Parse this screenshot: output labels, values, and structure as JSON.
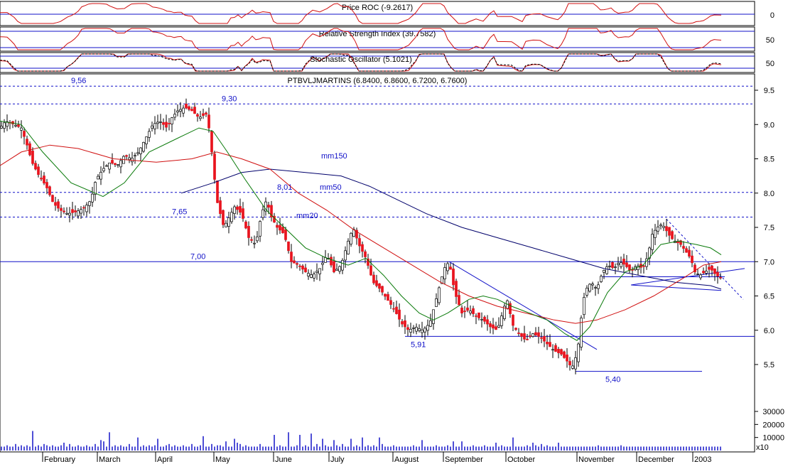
{
  "chart_data": {
    "type": "candlestick",
    "title": "PTBVLJMARTINS (6.8400, 6.8600, 6.7200, 6.7600)",
    "symbol": "PTBVLJMARTINS",
    "last_ohlc": {
      "open": 6.84,
      "high": 6.86,
      "low": 6.72,
      "close": 6.76
    },
    "price_axis": {
      "ylim": [
        5.3,
        9.6
      ],
      "ticks": [
        "9.5",
        "9.0",
        "8.5",
        "8.0",
        "7.5",
        "7.0",
        "6.5",
        "6.0",
        "5.5"
      ]
    },
    "time_axis": {
      "months": [
        "February",
        "March",
        "April",
        "May",
        "June",
        "July",
        "August",
        "September",
        "October",
        "November",
        "December",
        "2003"
      ]
    },
    "moving_averages": [
      {
        "name": "mm150",
        "color": "#00006b"
      },
      {
        "name": "mm50",
        "color": "#d01010"
      },
      {
        "name": "mm20",
        "color": "#0a7a0a"
      }
    ],
    "price_path": [
      [
        0,
        8.95
      ],
      [
        8,
        9.05
      ],
      [
        20,
        9.0
      ],
      [
        30,
        8.95
      ],
      [
        38,
        8.7
      ],
      [
        45,
        8.45
      ],
      [
        55,
        8.25
      ],
      [
        65,
        8.1
      ],
      [
        75,
        7.85
      ],
      [
        85,
        7.75
      ],
      [
        95,
        7.7
      ],
      [
        105,
        7.72
      ],
      [
        112,
        7.75
      ],
      [
        120,
        7.8
      ],
      [
        128,
        7.9
      ],
      [
        135,
        8.2
      ],
      [
        145,
        8.35
      ],
      [
        155,
        8.45
      ],
      [
        165,
        8.4
      ],
      [
        175,
        8.55
      ],
      [
        185,
        8.5
      ],
      [
        195,
        8.6
      ],
      [
        205,
        8.8
      ],
      [
        215,
        9.0
      ],
      [
        225,
        9.05
      ],
      [
        235,
        8.95
      ],
      [
        242,
        9.1
      ],
      [
        250,
        9.2
      ],
      [
        260,
        9.25
      ],
      [
        270,
        9.2
      ],
      [
        280,
        9.1
      ],
      [
        290,
        9.15
      ],
      [
        295,
        8.9
      ],
      [
        300,
        8.4
      ],
      [
        305,
        7.9
      ],
      [
        310,
        7.7
      ],
      [
        315,
        7.5
      ],
      [
        320,
        7.6
      ],
      [
        330,
        7.8
      ],
      [
        340,
        7.7
      ],
      [
        350,
        7.35
      ],
      [
        360,
        7.25
      ],
      [
        368,
        7.7
      ],
      [
        375,
        7.9
      ],
      [
        382,
        7.65
      ],
      [
        390,
        7.5
      ],
      [
        400,
        7.4
      ],
      [
        410,
        7.0
      ],
      [
        420,
        6.95
      ],
      [
        430,
        6.85
      ],
      [
        440,
        6.8
      ],
      [
        450,
        6.9
      ],
      [
        460,
        7.1
      ],
      [
        470,
        6.85
      ],
      [
        480,
        6.95
      ],
      [
        490,
        7.3
      ],
      [
        497,
        7.5
      ],
      [
        505,
        7.25
      ],
      [
        515,
        7.05
      ],
      [
        525,
        6.7
      ],
      [
        535,
        6.6
      ],
      [
        545,
        6.45
      ],
      [
        555,
        6.3
      ],
      [
        565,
        6.1
      ],
      [
        575,
        6.0
      ],
      [
        585,
        6.05
      ],
      [
        595,
        6.0
      ],
      [
        605,
        6.1
      ],
      [
        615,
        6.5
      ],
      [
        625,
        6.9
      ],
      [
        632,
        7.0
      ],
      [
        640,
        6.55
      ],
      [
        650,
        6.25
      ],
      [
        660,
        6.3
      ],
      [
        670,
        6.2
      ],
      [
        680,
        6.15
      ],
      [
        690,
        6.05
      ],
      [
        700,
        6.0
      ],
      [
        710,
        6.35
      ],
      [
        715,
        6.45
      ],
      [
        720,
        6.1
      ],
      [
        730,
        5.95
      ],
      [
        740,
        5.85
      ],
      [
        750,
        5.95
      ],
      [
        760,
        5.9
      ],
      [
        770,
        5.8
      ],
      [
        780,
        5.7
      ],
      [
        790,
        5.65
      ],
      [
        798,
        5.55
      ],
      [
        805,
        5.45
      ],
      [
        810,
        5.6
      ],
      [
        815,
        5.85
      ],
      [
        820,
        6.4
      ],
      [
        825,
        6.6
      ],
      [
        832,
        6.7
      ],
      [
        840,
        6.6
      ],
      [
        848,
        6.85
      ],
      [
        856,
        6.95
      ],
      [
        864,
        6.9
      ],
      [
        872,
        7.0
      ],
      [
        880,
        6.95
      ],
      [
        888,
        6.85
      ],
      [
        896,
        6.95
      ],
      [
        905,
        6.9
      ],
      [
        912,
        7.1
      ],
      [
        918,
        7.4
      ],
      [
        925,
        7.5
      ],
      [
        932,
        7.55
      ],
      [
        938,
        7.45
      ],
      [
        944,
        7.35
      ],
      [
        950,
        7.3
      ],
      [
        958,
        7.25
      ],
      [
        965,
        7.15
      ],
      [
        972,
        7.05
      ],
      [
        978,
        6.85
      ],
      [
        985,
        6.8
      ],
      [
        992,
        6.85
      ],
      [
        1000,
        6.9
      ],
      [
        1008,
        6.8
      ],
      [
        1015,
        6.76
      ]
    ],
    "ma_paths": {
      "mm20": [
        [
          0,
          9.05
        ],
        [
          30,
          9.0
        ],
        [
          60,
          8.6
        ],
        [
          100,
          8.15
        ],
        [
          145,
          7.95
        ],
        [
          175,
          8.15
        ],
        [
          210,
          8.6
        ],
        [
          250,
          8.8
        ],
        [
          280,
          8.95
        ],
        [
          300,
          8.9
        ],
        [
          320,
          8.6
        ],
        [
          345,
          8.2
        ],
        [
          375,
          7.75
        ],
        [
          400,
          7.5
        ],
        [
          430,
          7.2
        ],
        [
          460,
          7.05
        ],
        [
          490,
          6.95
        ],
        [
          515,
          7.05
        ],
        [
          540,
          6.8
        ],
        [
          565,
          6.5
        ],
        [
          590,
          6.25
        ],
        [
          610,
          6.15
        ],
        [
          630,
          6.25
        ],
        [
          660,
          6.45
        ],
        [
          680,
          6.5
        ],
        [
          700,
          6.45
        ],
        [
          720,
          6.35
        ],
        [
          745,
          6.25
        ],
        [
          770,
          6.15
        ],
        [
          795,
          5.95
        ],
        [
          812,
          5.85
        ],
        [
          830,
          6.05
        ],
        [
          855,
          6.55
        ],
        [
          880,
          6.85
        ],
        [
          905,
          6.95
        ],
        [
          930,
          7.25
        ],
        [
          955,
          7.3
        ],
        [
          980,
          7.25
        ],
        [
          1000,
          7.2
        ],
        [
          1015,
          7.1
        ]
      ],
      "mm50": [
        [
          0,
          8.4
        ],
        [
          30,
          8.6
        ],
        [
          70,
          8.7
        ],
        [
          110,
          8.65
        ],
        [
          160,
          8.5
        ],
        [
          220,
          8.45
        ],
        [
          270,
          8.5
        ],
        [
          305,
          8.6
        ],
        [
          340,
          8.5
        ],
        [
          380,
          8.35
        ],
        [
          420,
          8.0
        ],
        [
          460,
          7.75
        ],
        [
          500,
          7.45
        ],
        [
          540,
          7.2
        ],
        [
          580,
          6.95
        ],
        [
          620,
          6.7
        ],
        [
          660,
          6.5
        ],
        [
          700,
          6.35
        ],
        [
          740,
          6.25
        ],
        [
          780,
          6.15
        ],
        [
          810,
          6.1
        ],
        [
          840,
          6.15
        ],
        [
          880,
          6.3
        ],
        [
          920,
          6.5
        ],
        [
          960,
          6.75
        ],
        [
          990,
          6.95
        ],
        [
          1015,
          7.0
        ]
      ],
      "mm150": [
        [
          255,
          8.0
        ],
        [
          300,
          8.15
        ],
        [
          340,
          8.3
        ],
        [
          380,
          8.35
        ],
        [
          430,
          8.3
        ],
        [
          480,
          8.25
        ],
        [
          520,
          8.1
        ],
        [
          560,
          7.9
        ],
        [
          600,
          7.7
        ],
        [
          650,
          7.5
        ],
        [
          700,
          7.35
        ],
        [
          750,
          7.2
        ],
        [
          800,
          7.05
        ],
        [
          850,
          6.9
        ],
        [
          900,
          6.8
        ],
        [
          950,
          6.7
        ],
        [
          1000,
          6.65
        ],
        [
          1015,
          6.6
        ]
      ]
    },
    "horizontal_levels": [
      {
        "value": 9.56,
        "label": "9,56",
        "style": "dashed"
      },
      {
        "value": 9.3,
        "label": "9,30",
        "style": "dashed"
      },
      {
        "value": 8.01,
        "label": "8,01",
        "style": "dashed"
      },
      {
        "value": 7.65,
        "label": "7,65",
        "style": "dashed"
      },
      {
        "value": 7.0,
        "label": "7,00",
        "style": "solid"
      },
      {
        "value": 5.91,
        "label": "5,91",
        "style": "solid"
      },
      {
        "value": 5.4,
        "label": "5,40",
        "style": "solid"
      }
    ],
    "trendlines": [
      {
        "from": [
          632,
          7.0
        ],
        "to": [
          840,
          5.72
        ]
      },
      {
        "from": [
          888,
          6.66
        ],
        "to": [
          1048,
          6.9
        ]
      },
      {
        "from": [
          888,
          6.66
        ],
        "to": [
          1015,
          6.58
        ]
      },
      {
        "from": [
          848,
          6.78
        ],
        "to": [
          1020,
          6.78
        ]
      }
    ],
    "volume_axis": {
      "ylim": [
        0,
        40000
      ],
      "ticks": [
        "30000",
        "20000",
        "10000"
      ],
      "multiplier_label": "x10"
    },
    "volume": [
      3,
      3,
      4,
      3,
      3,
      5,
      3,
      4,
      3,
      4,
      3,
      15,
      3,
      4,
      3,
      5,
      4,
      3,
      4,
      3,
      3,
      4,
      6,
      3,
      5,
      3,
      3,
      4,
      3,
      3,
      4,
      3,
      3,
      5,
      3,
      8,
      7,
      3,
      14,
      3,
      4,
      3,
      4,
      3,
      3,
      5,
      3,
      3,
      10,
      3,
      4,
      3,
      4,
      3,
      4,
      9,
      3,
      3,
      4,
      5,
      3,
      4,
      3,
      3,
      4,
      3,
      3,
      5,
      3,
      3,
      4,
      11,
      3,
      3,
      5,
      3,
      4,
      4,
      3,
      7,
      3,
      3,
      9,
      6,
      5,
      3,
      4,
      3,
      3,
      3,
      3,
      5,
      3,
      3,
      3,
      3,
      12,
      3,
      4,
      3,
      3,
      14,
      3,
      3,
      4,
      12,
      3,
      4,
      3,
      13,
      3,
      5,
      3,
      9,
      4,
      3,
      3,
      8,
      4,
      3,
      5,
      3,
      3,
      9,
      3,
      4,
      3,
      10,
      3,
      4,
      3,
      4,
      3,
      10,
      5,
      3,
      3,
      3,
      4,
      3,
      3,
      3,
      3,
      3,
      3,
      4,
      3,
      3,
      8,
      3,
      3,
      3,
      3,
      4,
      3,
      3,
      3,
      4,
      3,
      7,
      3,
      3,
      7,
      3,
      3,
      3,
      4,
      3,
      3,
      3,
      4,
      3,
      3,
      3,
      6,
      3,
      4,
      3,
      3,
      3,
      10,
      3,
      3,
      3,
      3,
      4,
      3,
      6,
      4,
      3,
      5,
      3,
      4,
      3,
      3,
      3,
      6,
      3,
      3,
      3,
      3,
      3,
      3,
      3,
      3,
      3,
      3,
      3,
      3,
      3,
      4,
      3,
      3,
      3,
      3,
      3,
      3,
      3,
      4,
      3,
      3,
      3,
      3,
      3,
      3,
      3,
      3,
      3,
      3,
      3,
      3,
      3,
      3,
      3,
      3,
      3,
      3,
      3,
      3,
      3,
      3,
      3,
      3,
      3,
      3,
      3,
      3,
      3,
      3,
      3,
      3,
      3,
      3,
      3,
      3,
      3,
      3,
      3
    ],
    "indicators": [
      {
        "name": "Price ROC",
        "title": "Price ROC (-9.2617)",
        "value": -9.2617,
        "ticks": [
          "0"
        ]
      },
      {
        "name": "Relative Strength Index",
        "title": "Relative Strength Index (39.7582)",
        "value": 39.7582,
        "ticks": [
          "50"
        ]
      },
      {
        "name": "Stochastic Oscillator",
        "title": "Stochastic Oscillator (5.1021)",
        "value": 5.1021,
        "ticks": [
          "50"
        ]
      }
    ],
    "colors": {
      "up_candle": "#ffffff",
      "down_candle": "#e8141e",
      "grid_line": "#1010c8",
      "volume_bar": "#1414c8",
      "indicator_line": "#d01010",
      "border": "#000000"
    }
  }
}
